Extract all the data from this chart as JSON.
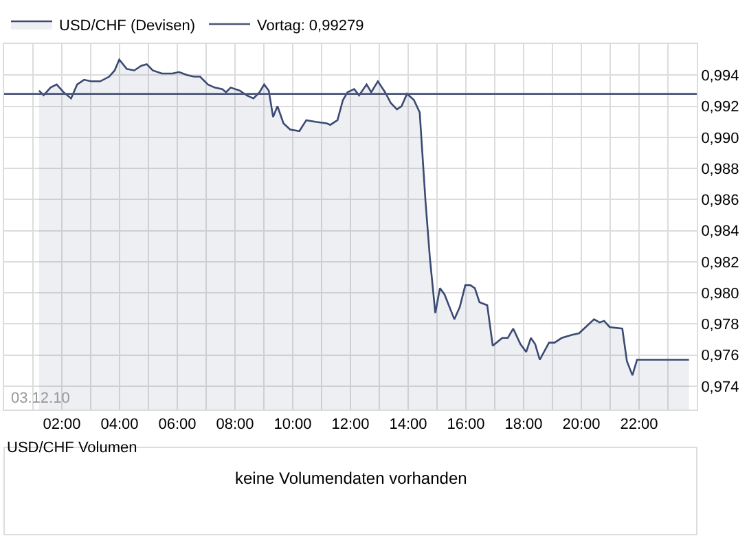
{
  "chart_data": [
    {
      "type": "area",
      "legend": "top left",
      "grid": true,
      "line_style": "solid",
      "marker": "none",
      "x": [
        1.21,
        1.37,
        1.61,
        1.82,
        2.06,
        2.32,
        2.53,
        2.77,
        3.01,
        3.33,
        3.64,
        3.83,
        3.99,
        4.25,
        4.51,
        4.75,
        4.94,
        5.15,
        5.47,
        5.83,
        6.06,
        6.34,
        6.58,
        6.79,
        7.06,
        7.29,
        7.56,
        7.69,
        7.85,
        8.17,
        8.4,
        8.64,
        8.85,
        9.01,
        9.17,
        9.32,
        9.47,
        9.68,
        9.91,
        10.23,
        10.47,
        10.79,
        11.18,
        11.3,
        11.55,
        11.74,
        11.9,
        12.13,
        12.3,
        12.56,
        12.72,
        12.95,
        13.2,
        13.4,
        13.61,
        13.77,
        13.96,
        14.2,
        14.4,
        14.6,
        14.75,
        14.94,
        15.1,
        15.26,
        15.6,
        15.79,
        15.98,
        16.15,
        16.31,
        16.47,
        16.74,
        16.93,
        17.26,
        17.45,
        17.64,
        17.89,
        18.09,
        18.25,
        18.4,
        18.56,
        18.88,
        19.07,
        19.32,
        19.68,
        19.92,
        20.15,
        20.44,
        20.63,
        20.79,
        20.98,
        21.42,
        21.58,
        21.77,
        21.93,
        23.73
      ],
      "series": [
        {
          "name": "USD/CHF (Devisen)",
          "color": "#3b4a73",
          "values": [
            0.993,
            0.9927,
            0.9932,
            0.9934,
            0.9929,
            0.9925,
            0.9934,
            0.9937,
            0.9936,
            0.9936,
            0.9939,
            0.9943,
            0.995,
            0.9944,
            0.9943,
            0.9946,
            0.9947,
            0.9943,
            0.9941,
            0.9941,
            0.9942,
            0.994,
            0.9939,
            0.9939,
            0.9934,
            0.9932,
            0.9931,
            0.9929,
            0.9932,
            0.993,
            0.9927,
            0.9925,
            0.9929,
            0.9934,
            0.993,
            0.9913,
            0.992,
            0.9909,
            0.9905,
            0.9904,
            0.9911,
            0.991,
            0.9909,
            0.9908,
            0.9911,
            0.9924,
            0.9929,
            0.9931,
            0.9927,
            0.9934,
            0.9929,
            0.9936,
            0.9929,
            0.9922,
            0.9918,
            0.992,
            0.9928,
            0.9924,
            0.9916,
            0.9859,
            0.9823,
            0.9787,
            0.9803,
            0.9799,
            0.9783,
            0.9791,
            0.9805,
            0.9805,
            0.9803,
            0.9794,
            0.9792,
            0.9766,
            0.9771,
            0.9771,
            0.9777,
            0.9767,
            0.9762,
            0.9771,
            0.9767,
            0.9757,
            0.9768,
            0.9768,
            0.9771,
            0.9773,
            0.9774,
            0.9778,
            0.9783,
            0.9781,
            0.9782,
            0.9778,
            0.9777,
            0.9756,
            0.9747,
            0.9757,
            0.9757
          ]
        }
      ],
      "ref_lines": [
        {
          "axis": "y",
          "value": 0.99279,
          "label": "Vortag: 0,99279",
          "color": "#4a5578"
        }
      ],
      "annotations": [
        "03.12.10"
      ],
      "xlim": [
        0,
        24
      ],
      "xticks": [
        {
          "value": 1,
          "label": null
        },
        {
          "value": 2,
          "label": "02:00"
        },
        {
          "value": 3,
          "label": null
        },
        {
          "value": 4,
          "label": "04:00"
        },
        {
          "value": 5,
          "label": null
        },
        {
          "value": 6,
          "label": "06:00"
        },
        {
          "value": 7,
          "label": null
        },
        {
          "value": 8,
          "label": "08:00"
        },
        {
          "value": 9,
          "label": null
        },
        {
          "value": 10,
          "label": "10:00"
        },
        {
          "value": 11,
          "label": null
        },
        {
          "value": 12,
          "label": "12:00"
        },
        {
          "value": 13,
          "label": null
        },
        {
          "value": 14,
          "label": "14:00"
        },
        {
          "value": 15,
          "label": null
        },
        {
          "value": 16,
          "label": "16:00"
        },
        {
          "value": 17,
          "label": null
        },
        {
          "value": 18,
          "label": "18:00"
        },
        {
          "value": 19,
          "label": null
        },
        {
          "value": 20,
          "label": "20:00"
        },
        {
          "value": 21,
          "label": null
        },
        {
          "value": 22,
          "label": "22:00"
        },
        {
          "value": 23,
          "label": null
        }
      ],
      "ylim": [
        0.9725,
        0.996
      ],
      "yticks": [
        {
          "value": 0.974,
          "label": "0,974"
        },
        {
          "value": 0.976,
          "label": "0,976"
        },
        {
          "value": 0.978,
          "label": "0,978"
        },
        {
          "value": 0.98,
          "label": "0,980"
        },
        {
          "value": 0.982,
          "label": "0,982"
        },
        {
          "value": 0.984,
          "label": "0,984"
        },
        {
          "value": 0.986,
          "label": "0,986"
        },
        {
          "value": 0.988,
          "label": "0,988"
        },
        {
          "value": 0.99,
          "label": "0,990"
        },
        {
          "value": 0.992,
          "label": "0,992"
        },
        {
          "value": 0.994,
          "label": "0,994"
        }
      ]
    },
    {
      "type": "other",
      "title": "USD/CHF Volumen",
      "annotations": [
        "keine Volumendaten vorhanden"
      ]
    }
  ]
}
